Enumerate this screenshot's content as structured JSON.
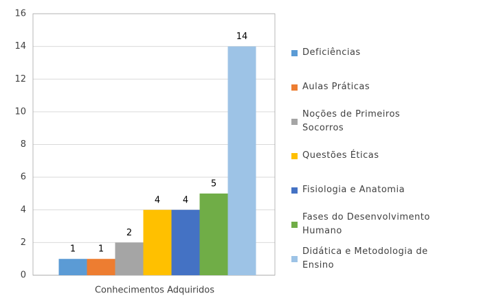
{
  "chart_data": {
    "type": "bar",
    "categories": [
      "Conhecimentos Adquiridos"
    ],
    "series": [
      {
        "name": "Deficiências",
        "color": "#5b9bd5",
        "values": [
          1
        ]
      },
      {
        "name": "Aulas Práticas",
        "color": "#ed7d31",
        "values": [
          1
        ]
      },
      {
        "name": "Noções de Primeiros Socorros",
        "color": "#a5a5a5",
        "values": [
          2
        ]
      },
      {
        "name": "Questões Éticas",
        "color": "#ffc000",
        "values": [
          4
        ]
      },
      {
        "name": "Fisiologia e Anatomia",
        "color": "#4472c4",
        "values": [
          4
        ]
      },
      {
        "name": "Fases do Desenvolvimento Humano",
        "color": "#70ad47",
        "values": [
          5
        ]
      },
      {
        "name": "Didática e Metodologia de Ensino",
        "color": "#9dc3e6",
        "values": [
          14
        ]
      }
    ],
    "ylim": [
      0,
      16
    ],
    "yticks": [
      0,
      2,
      4,
      6,
      8,
      10,
      12,
      14,
      16
    ],
    "grid": true,
    "legend": "right"
  }
}
